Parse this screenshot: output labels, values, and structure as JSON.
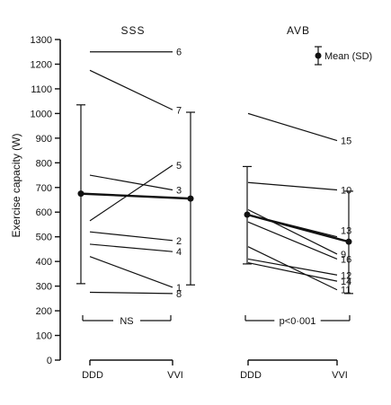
{
  "chart_data": {
    "type": "line",
    "title": "",
    "ylabel": "Exercise capacity (W)",
    "ylim": [
      0,
      1300
    ],
    "yticks": [
      0,
      100,
      200,
      300,
      400,
      500,
      600,
      700,
      800,
      900,
      1000,
      1100,
      1200,
      1300
    ],
    "x_categories": [
      "DDD",
      "VVI"
    ],
    "grid": false,
    "legend": {
      "position": "top-right",
      "label": "Mean (SD)"
    },
    "panels": [
      {
        "title": "SSS",
        "significance": "NS",
        "patients": [
          {
            "id": "6",
            "values": [
              1250,
              1250
            ]
          },
          {
            "id": "7",
            "values": [
              1175,
              1015
            ]
          },
          {
            "id": "5",
            "values": [
              565,
              790
            ]
          },
          {
            "id": "3",
            "values": [
              750,
              690
            ]
          },
          {
            "id": "2",
            "values": [
              520,
              485
            ]
          },
          {
            "id": "4",
            "values": [
              470,
              440
            ]
          },
          {
            "id": "1",
            "values": [
              420,
              295
            ]
          },
          {
            "id": "8",
            "values": [
              275,
              270
            ]
          }
        ],
        "mean": [
          675,
          655
        ],
        "sd_range": [
          [
            310,
            1035
          ],
          [
            305,
            1005
          ]
        ]
      },
      {
        "title": "AVB",
        "significance": "p<0·001",
        "patients": [
          {
            "id": "15",
            "values": [
              1000,
              890
            ]
          },
          {
            "id": "10",
            "values": [
              720,
              690
            ]
          },
          {
            "id": "13",
            "values": [
              590,
              500
            ]
          },
          {
            "id": "9",
            "values": [
              610,
              430
            ]
          },
          {
            "id": "16",
            "values": [
              560,
              410
            ]
          },
          {
            "id": "12",
            "values": [
              410,
              345
            ]
          },
          {
            "id": "14",
            "values": [
              395,
              320
            ]
          },
          {
            "id": "11",
            "values": [
              460,
              285
            ]
          }
        ],
        "mean": [
          590,
          480
        ],
        "sd_range": [
          [
            390,
            785
          ],
          [
            270,
            685
          ]
        ]
      }
    ]
  }
}
